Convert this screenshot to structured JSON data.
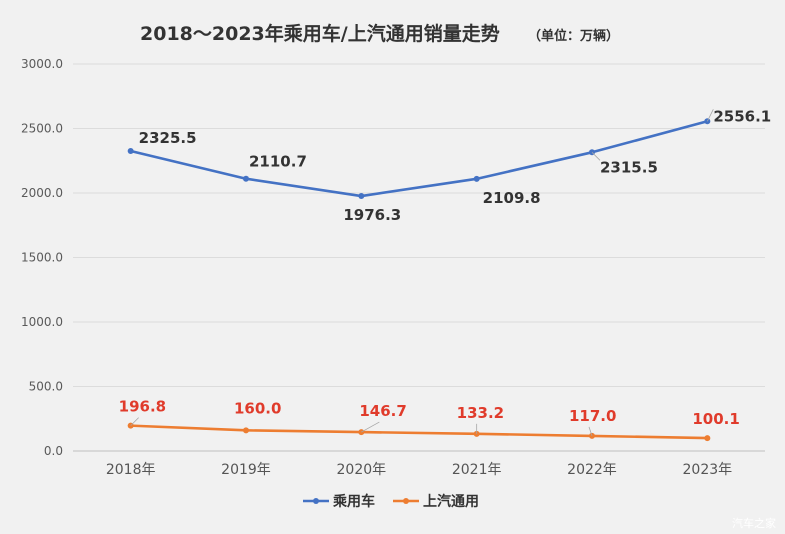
{
  "chart_data": {
    "type": "line",
    "title": "2018～2023年乘用车/上汽通用销量走势",
    "subtitle": "（单位：万辆）",
    "categories": [
      "2018年",
      "2019年",
      "2020年",
      "2021年",
      "2022年",
      "2023年"
    ],
    "ylim": [
      0,
      3000
    ],
    "yticks": [
      "0.0",
      "500.0",
      "1000.0",
      "1500.0",
      "2000.0",
      "2500.0",
      "3000.0"
    ],
    "grid": true,
    "legend_position": "bottom",
    "series": [
      {
        "name": "乘用车",
        "color": "#4472c4",
        "values": [
          2325.5,
          2110.7,
          1976.3,
          2109.8,
          2315.5,
          2556.1
        ],
        "labels": [
          "2325.5",
          "2110.7",
          "1976.3",
          "2109.8",
          "2315.5",
          "2556.1"
        ]
      },
      {
        "name": "上汽通用",
        "color": "#ed7d31",
        "values": [
          196.8,
          160.0,
          146.7,
          133.2,
          117.0,
          100.1
        ],
        "labels": [
          "196.8",
          "160.0",
          "146.7",
          "133.2",
          "117.0",
          "100.1"
        ]
      }
    ]
  },
  "watermark": "汽车之家"
}
